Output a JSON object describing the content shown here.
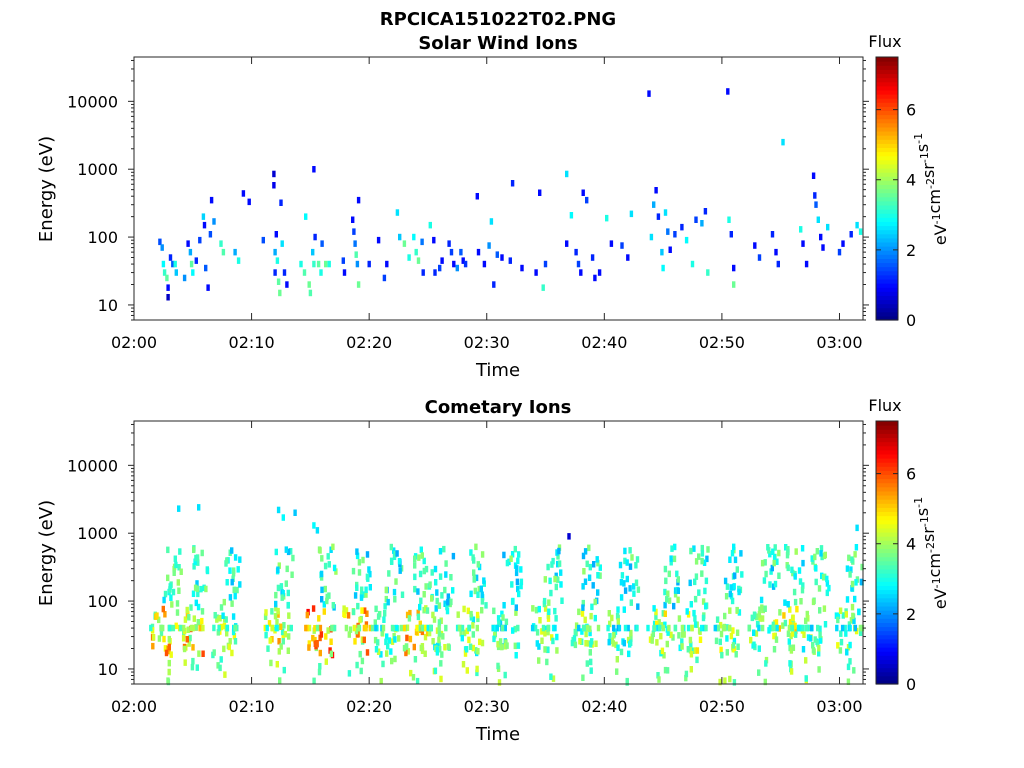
{
  "figure": {
    "title": "RPCICA151022T02.PNG"
  },
  "colorbar": {
    "label": "Flux",
    "unit_parts": [
      "eV",
      "-1",
      "cm",
      "-2",
      "sr",
      "-1",
      "s",
      "-1"
    ],
    "ticks": [
      "0",
      "2",
      "4",
      "6"
    ],
    "range": [
      0,
      7.5
    ],
    "colormap": "jet"
  },
  "chart_data": [
    {
      "type": "heatmap",
      "title": "Solar Wind Ions",
      "xlabel": "Time",
      "ylabel": "Energy (eV)",
      "x_ticks": [
        "02:00",
        "02:10",
        "02:20",
        "02:30",
        "02:40",
        "02:50",
        "03:00"
      ],
      "xlim": [
        "02:00",
        "03:02"
      ],
      "y_ticks": [
        "10",
        "100",
        "1000",
        "10000"
      ],
      "y_scale": "log",
      "ylim": [
        6,
        45000
      ],
      "value_label": "Flux",
      "points": [
        [
          2.2,
          85,
          1.5
        ],
        [
          2.4,
          70,
          2.0
        ],
        [
          2.5,
          40,
          2.8
        ],
        [
          2.6,
          30,
          3.2
        ],
        [
          2.8,
          25,
          3.5
        ],
        [
          2.9,
          18,
          1.0
        ],
        [
          2.9,
          13,
          0.5
        ],
        [
          3.1,
          50,
          1.2
        ],
        [
          3.3,
          40,
          1.6
        ],
        [
          3.5,
          40,
          3.0
        ],
        [
          3.6,
          30,
          2.4
        ],
        [
          4.3,
          25,
          2.0
        ],
        [
          4.6,
          80,
          1.0
        ],
        [
          4.8,
          60,
          2.2
        ],
        [
          4.9,
          40,
          3.5
        ],
        [
          5.0,
          30,
          2.8
        ],
        [
          5.3,
          45,
          1.2
        ],
        [
          5.6,
          90,
          1.4
        ],
        [
          5.9,
          200,
          2.5
        ],
        [
          6.0,
          150,
          1.0
        ],
        [
          6.1,
          35,
          1.6
        ],
        [
          6.3,
          18,
          1.0
        ],
        [
          6.5,
          110,
          1.5
        ],
        [
          6.6,
          350,
          1.0
        ],
        [
          6.8,
          170,
          2.0
        ],
        [
          7.4,
          80,
          3.2
        ],
        [
          7.6,
          60,
          3.4
        ],
        [
          8.6,
          60,
          2.2
        ],
        [
          8.9,
          45,
          3.0
        ],
        [
          9.3,
          440,
          1.0
        ],
        [
          9.8,
          330,
          1.0
        ],
        [
          11.0,
          90,
          1.5
        ],
        [
          11.9,
          850,
          0.6
        ],
        [
          11.9,
          580,
          0.8
        ],
        [
          12.0,
          60,
          2.2
        ],
        [
          12.0,
          30,
          1.2
        ],
        [
          12.1,
          110,
          1.0
        ],
        [
          12.2,
          45,
          3.0
        ],
        [
          12.3,
          22,
          3.5
        ],
        [
          12.4,
          15,
          3.6
        ],
        [
          12.5,
          320,
          1.2
        ],
        [
          12.6,
          80,
          2.6
        ],
        [
          12.8,
          30,
          1.2
        ],
        [
          13.0,
          20,
          1.0
        ],
        [
          14.2,
          40,
          3.0
        ],
        [
          14.5,
          30,
          3.4
        ],
        [
          14.6,
          200,
          2.8
        ],
        [
          14.9,
          20,
          3.6
        ],
        [
          15.0,
          15,
          3.4
        ],
        [
          15.2,
          60,
          2.4
        ],
        [
          15.3,
          40,
          3.2
        ],
        [
          15.3,
          1000,
          1.0
        ],
        [
          15.4,
          100,
          1.2
        ],
        [
          15.7,
          40,
          3.5
        ],
        [
          15.9,
          30,
          3.0
        ],
        [
          16.0,
          80,
          1.6
        ],
        [
          16.3,
          40,
          3.6
        ],
        [
          16.6,
          40,
          3.0
        ],
        [
          17.8,
          45,
          1.4
        ],
        [
          17.9,
          30,
          1.0
        ],
        [
          18.6,
          180,
          1.0
        ],
        [
          18.7,
          120,
          1.4
        ],
        [
          18.8,
          80,
          1.8
        ],
        [
          18.9,
          55,
          3.4
        ],
        [
          19.0,
          40,
          2.0
        ],
        [
          19.1,
          20,
          3.6
        ],
        [
          19.1,
          350,
          1.0
        ],
        [
          20.0,
          40,
          1.2
        ],
        [
          20.8,
          90,
          1.0
        ],
        [
          21.3,
          25,
          1.4
        ],
        [
          21.5,
          40,
          1.0
        ],
        [
          22.4,
          230,
          2.6
        ],
        [
          22.6,
          100,
          2.4
        ],
        [
          23.0,
          80,
          3.6
        ],
        [
          23.4,
          50,
          3.0
        ],
        [
          23.8,
          100,
          2.8
        ],
        [
          24.0,
          60,
          3.2
        ],
        [
          24.2,
          45,
          3.6
        ],
        [
          24.5,
          85,
          1.8
        ],
        [
          24.6,
          30,
          1.2
        ],
        [
          25.2,
          150,
          3.0
        ],
        [
          25.5,
          90,
          1.0
        ],
        [
          25.6,
          30,
          1.2
        ],
        [
          26.0,
          35,
          1.4
        ],
        [
          26.2,
          45,
          1.0
        ],
        [
          26.8,
          80,
          1.2
        ],
        [
          27.0,
          60,
          1.4
        ],
        [
          27.2,
          40,
          1.0
        ],
        [
          27.5,
          35,
          2.0
        ],
        [
          27.8,
          60,
          1.6
        ],
        [
          28.0,
          45,
          1.0
        ],
        [
          28.2,
          40,
          1.3
        ],
        [
          29.3,
          60,
          1.0
        ],
        [
          29.2,
          400,
          1.0
        ],
        [
          29.8,
          40,
          1.0
        ],
        [
          30.2,
          75,
          2.0
        ],
        [
          30.4,
          170,
          2.6
        ],
        [
          30.6,
          20,
          1.2
        ],
        [
          30.9,
          55,
          1.6
        ],
        [
          31.3,
          50,
          1.0
        ],
        [
          32.0,
          45,
          1.2
        ],
        [
          32.2,
          620,
          1.2
        ],
        [
          33.0,
          35,
          1.0
        ],
        [
          34.2,
          30,
          1.0
        ],
        [
          34.5,
          450,
          1.0
        ],
        [
          34.8,
          18,
          3.2
        ],
        [
          35.0,
          40,
          1.4
        ],
        [
          36.8,
          80,
          1.0
        ],
        [
          36.8,
          850,
          2.6
        ],
        [
          37.2,
          210,
          2.8
        ],
        [
          37.6,
          60,
          1.2
        ],
        [
          37.8,
          40,
          1.4
        ],
        [
          38.0,
          30,
          1.0
        ],
        [
          38.2,
          450,
          1.0
        ],
        [
          38.5,
          350,
          1.4
        ],
        [
          39.0,
          50,
          1.2
        ],
        [
          39.2,
          25,
          1.0
        ],
        [
          39.6,
          30,
          1.0
        ],
        [
          40.2,
          190,
          3.0
        ],
        [
          40.6,
          80,
          1.0
        ],
        [
          41.5,
          75,
          1.4
        ],
        [
          42.0,
          50,
          1.0
        ],
        [
          42.3,
          220,
          2.6
        ],
        [
          43.8,
          13000,
          1.0
        ],
        [
          44.0,
          100,
          2.6
        ],
        [
          44.2,
          300,
          2.2
        ],
        [
          44.4,
          490,
          1.0
        ],
        [
          44.6,
          200,
          1.2
        ],
        [
          44.9,
          60,
          2.4
        ],
        [
          45.0,
          35,
          2.8
        ],
        [
          45.2,
          230,
          2.6
        ],
        [
          45.4,
          120,
          1.8
        ],
        [
          45.6,
          65,
          1.0
        ],
        [
          46.0,
          110,
          1.4
        ],
        [
          46.6,
          140,
          1.2
        ],
        [
          47.0,
          90,
          2.8
        ],
        [
          47.5,
          40,
          3.0
        ],
        [
          47.8,
          180,
          1.4
        ],
        [
          48.3,
          160,
          2.2
        ],
        [
          48.6,
          240,
          1.2
        ],
        [
          48.8,
          30,
          3.2
        ],
        [
          50.5,
          14000,
          1.0
        ],
        [
          50.6,
          180,
          3.0
        ],
        [
          50.8,
          110,
          1.2
        ],
        [
          51.0,
          35,
          1.0
        ],
        [
          51.0,
          20,
          3.6
        ],
        [
          52.8,
          75,
          1.0
        ],
        [
          53.2,
          50,
          1.4
        ],
        [
          54.3,
          110,
          1.2
        ],
        [
          54.6,
          60,
          1.0
        ],
        [
          54.8,
          40,
          1.2
        ],
        [
          55.2,
          2500,
          2.6
        ],
        [
          56.7,
          130,
          3.0
        ],
        [
          56.9,
          80,
          1.0
        ],
        [
          57.2,
          40,
          1.0
        ],
        [
          57.8,
          800,
          1.0
        ],
        [
          57.9,
          410,
          1.2
        ],
        [
          58.0,
          300,
          1.6
        ],
        [
          58.2,
          180,
          2.6
        ],
        [
          58.4,
          100,
          1.0
        ],
        [
          58.6,
          70,
          1.0
        ],
        [
          59.0,
          140,
          2.6
        ],
        [
          60.0,
          60,
          1.4
        ],
        [
          60.3,
          80,
          1.0
        ],
        [
          61.0,
          110,
          1.2
        ],
        [
          61.5,
          150,
          2.6
        ],
        [
          61.8,
          120,
          3.0
        ]
      ]
    },
    {
      "type": "heatmap",
      "title": "Cometary Ions",
      "xlabel": "Time",
      "ylabel": "Energy (eV)",
      "x_ticks": [
        "02:00",
        "02:10",
        "02:20",
        "02:30",
        "02:40",
        "02:50",
        "03:00"
      ],
      "xlim": [
        "02:00",
        "03:02"
      ],
      "y_ticks": [
        "10",
        "100",
        "1000",
        "10000"
      ],
      "y_scale": "log",
      "ylim": [
        6,
        45000
      ],
      "value_label": "Flux",
      "bursts": [
        {
          "t": 2.6,
          "peak": 6.0
        },
        {
          "t": 5.0,
          "peak": 6.2
        },
        {
          "t": 7.6,
          "peak": 4.8
        },
        {
          "t": 12.2,
          "peak": 5.6
        },
        {
          "t": 15.8,
          "peak": 6.6
        },
        {
          "t": 18.8,
          "peak": 6.0
        },
        {
          "t": 21.5,
          "peak": 4.6
        },
        {
          "t": 24.0,
          "peak": 6.0
        },
        {
          "t": 25.8,
          "peak": 4.6
        },
        {
          "t": 28.6,
          "peak": 4.6
        },
        {
          "t": 31.6,
          "peak": 4.2
        },
        {
          "t": 35.0,
          "peak": 4.6
        },
        {
          "t": 38.3,
          "peak": 4.7
        },
        {
          "t": 41.5,
          "peak": 4.2
        },
        {
          "t": 44.9,
          "peak": 5.0
        },
        {
          "t": 47.4,
          "peak": 5.0
        },
        {
          "t": 50.4,
          "peak": 4.8
        },
        {
          "t": 53.5,
          "peak": 4.6
        },
        {
          "t": 55.5,
          "peak": 5.2
        },
        {
          "t": 57.8,
          "peak": 4.6
        },
        {
          "t": 60.8,
          "peak": 4.6
        }
      ],
      "isolated_points": [
        [
          3.8,
          2300,
          2.6
        ],
        [
          5.5,
          2400,
          2.6
        ],
        [
          12.3,
          2200,
          2.6
        ],
        [
          12.7,
          1700,
          2.8
        ],
        [
          13.7,
          2000,
          2.4
        ],
        [
          15.3,
          1300,
          2.8
        ],
        [
          15.6,
          1100,
          2.6
        ],
        [
          37.0,
          900,
          0.6
        ],
        [
          61.5,
          1200,
          2.6
        ]
      ]
    }
  ]
}
